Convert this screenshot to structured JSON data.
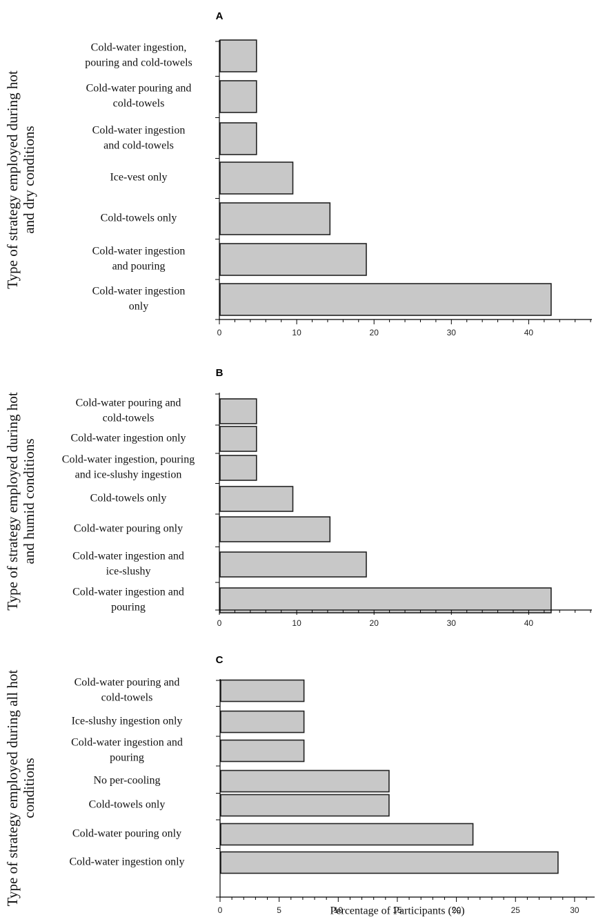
{
  "chart_data": [
    {
      "type": "bar",
      "orientation": "horizontal",
      "panel_label": "A",
      "ylabel_lines": [
        "Type of strategy employed during hot",
        "and dry conditions"
      ],
      "xlabel": "",
      "xlim": [
        0,
        48
      ],
      "xticks": [
        0,
        10,
        20,
        30,
        40
      ],
      "categories": [
        [
          "Cold-water ingestion,",
          "pouring and cold-towels"
        ],
        [
          "Cold-water pouring and",
          "cold-towels"
        ],
        [
          "Cold-water ingestion",
          "and cold-towels"
        ],
        [
          "Ice-vest only"
        ],
        [
          "Cold-towels only"
        ],
        [
          "Cold-water ingestion",
          "and pouring"
        ],
        [
          "Cold-water ingestion",
          "only"
        ]
      ],
      "values": [
        4.8,
        4.8,
        4.8,
        9.5,
        14.3,
        19.0,
        42.9
      ],
      "bar_color": "#c8c8c8"
    },
    {
      "type": "bar",
      "orientation": "horizontal",
      "panel_label": "B",
      "ylabel_lines": [
        "Type of strategy employed during hot",
        "and humid  conditions"
      ],
      "xlabel": "",
      "xlim": [
        0,
        48
      ],
      "xticks": [
        0,
        10,
        20,
        30,
        40
      ],
      "categories": [
        [
          "Cold-water pouring and",
          "cold-towels"
        ],
        [
          "Cold-water ingestion only"
        ],
        [
          "Cold-water ingestion, pouring",
          "and ice-slushy ingestion"
        ],
        [
          "Cold-towels only"
        ],
        [
          "Cold-water pouring only"
        ],
        [
          "Cold-water ingestion and",
          "ice-slushy"
        ],
        [
          "Cold-water ingestion and",
          "pouring"
        ]
      ],
      "values": [
        4.8,
        4.8,
        4.8,
        9.5,
        14.3,
        19.0,
        42.9
      ],
      "bar_color": "#c8c8c8"
    },
    {
      "type": "bar",
      "orientation": "horizontal",
      "panel_label": "C",
      "ylabel_lines": [
        "Type of strategy employed during all hot",
        "conditions"
      ],
      "xlabel": "Percentage of Participants (%)",
      "xlim": [
        0,
        31
      ],
      "xticks": [
        0,
        5,
        10,
        15,
        20,
        25,
        30
      ],
      "categories": [
        [
          "Cold-water pouring and",
          "cold-towels"
        ],
        [
          "Ice-slushy ingestion only"
        ],
        [
          "Cold-water ingestion and",
          "pouring"
        ],
        [
          "No per-cooling"
        ],
        [
          "Cold-towels only"
        ],
        [
          "Cold-water pouring only"
        ],
        [
          "Cold-water ingestion only"
        ]
      ],
      "values": [
        7.1,
        7.1,
        7.1,
        14.3,
        14.3,
        21.4,
        28.6
      ],
      "bar_color": "#c8c8c8"
    }
  ]
}
